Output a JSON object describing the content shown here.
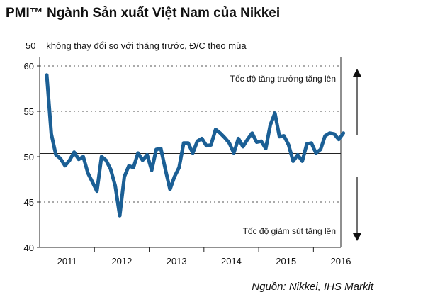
{
  "title": "PMI™ Ngành Sản xuất Việt Nam của Nikkei",
  "subtitle": "50 = không thay đổi so với tháng trước, Đ/C theo mùa",
  "source": "Nguồn: Nikkei, IHS Markit",
  "chart_data": {
    "type": "line",
    "title": "PMI™ Ngành Sản xuất Việt Nam của Nikkei",
    "subtitle": "50 = không thay đổi so với tháng trước, Đ/C theo mùa",
    "ylim": [
      40,
      60
    ],
    "yticks": [
      40,
      45,
      50,
      55,
      60
    ],
    "x_range": [
      "2011-01",
      "2016-06"
    ],
    "xtick_labels": [
      "2011",
      "2012",
      "2013",
      "2014",
      "2015",
      "2016"
    ],
    "grid": "horizontal dotted",
    "annotations": {
      "up": "Tốc độ tăng trưởng tăng lên",
      "down": "Tốc độ giảm sút tăng lên"
    },
    "line_color": "#1b5f95",
    "x": [
      "2011-01",
      "2011-02",
      "2011-03",
      "2011-04",
      "2011-05",
      "2011-06",
      "2011-07",
      "2011-08",
      "2011-09",
      "2011-10",
      "2011-11",
      "2011-12",
      "2012-01",
      "2012-02",
      "2012-03",
      "2012-04",
      "2012-05",
      "2012-06",
      "2012-07",
      "2012-08",
      "2012-09",
      "2012-10",
      "2012-11",
      "2012-12",
      "2013-01",
      "2013-02",
      "2013-03",
      "2013-04",
      "2013-05",
      "2013-06",
      "2013-07",
      "2013-08",
      "2013-09",
      "2013-10",
      "2013-11",
      "2013-12",
      "2014-01",
      "2014-02",
      "2014-03",
      "2014-04",
      "2014-05",
      "2014-06",
      "2014-07",
      "2014-08",
      "2014-09",
      "2014-10",
      "2014-11",
      "2014-12",
      "2015-01",
      "2015-02",
      "2015-03",
      "2015-04",
      "2015-05",
      "2015-06",
      "2015-07",
      "2015-08",
      "2015-09",
      "2015-10",
      "2015-11",
      "2015-12",
      "2016-01",
      "2016-02",
      "2016-03",
      "2016-04",
      "2016-05",
      "2016-06"
    ],
    "values": [
      59.0,
      52.5,
      50.2,
      49.8,
      49.0,
      49.6,
      50.5,
      49.7,
      50.0,
      48.2,
      47.2,
      46.2,
      50.0,
      49.6,
      48.6,
      46.8,
      43.5,
      47.8,
      49.0,
      48.8,
      50.4,
      49.6,
      50.2,
      48.5,
      50.8,
      50.9,
      48.6,
      46.4,
      47.8,
      48.8,
      51.5,
      51.5,
      50.4,
      51.7,
      52.0,
      51.2,
      51.3,
      53.0,
      52.6,
      52.1,
      51.5,
      50.4,
      52.0,
      51.1,
      51.9,
      52.6,
      51.6,
      51.7,
      50.9,
      53.5,
      54.8,
      52.2,
      52.3,
      51.3,
      49.5,
      50.2,
      49.5,
      51.4,
      51.5,
      50.4,
      50.8,
      52.3,
      52.6,
      52.5,
      51.9,
      52.6
    ]
  }
}
